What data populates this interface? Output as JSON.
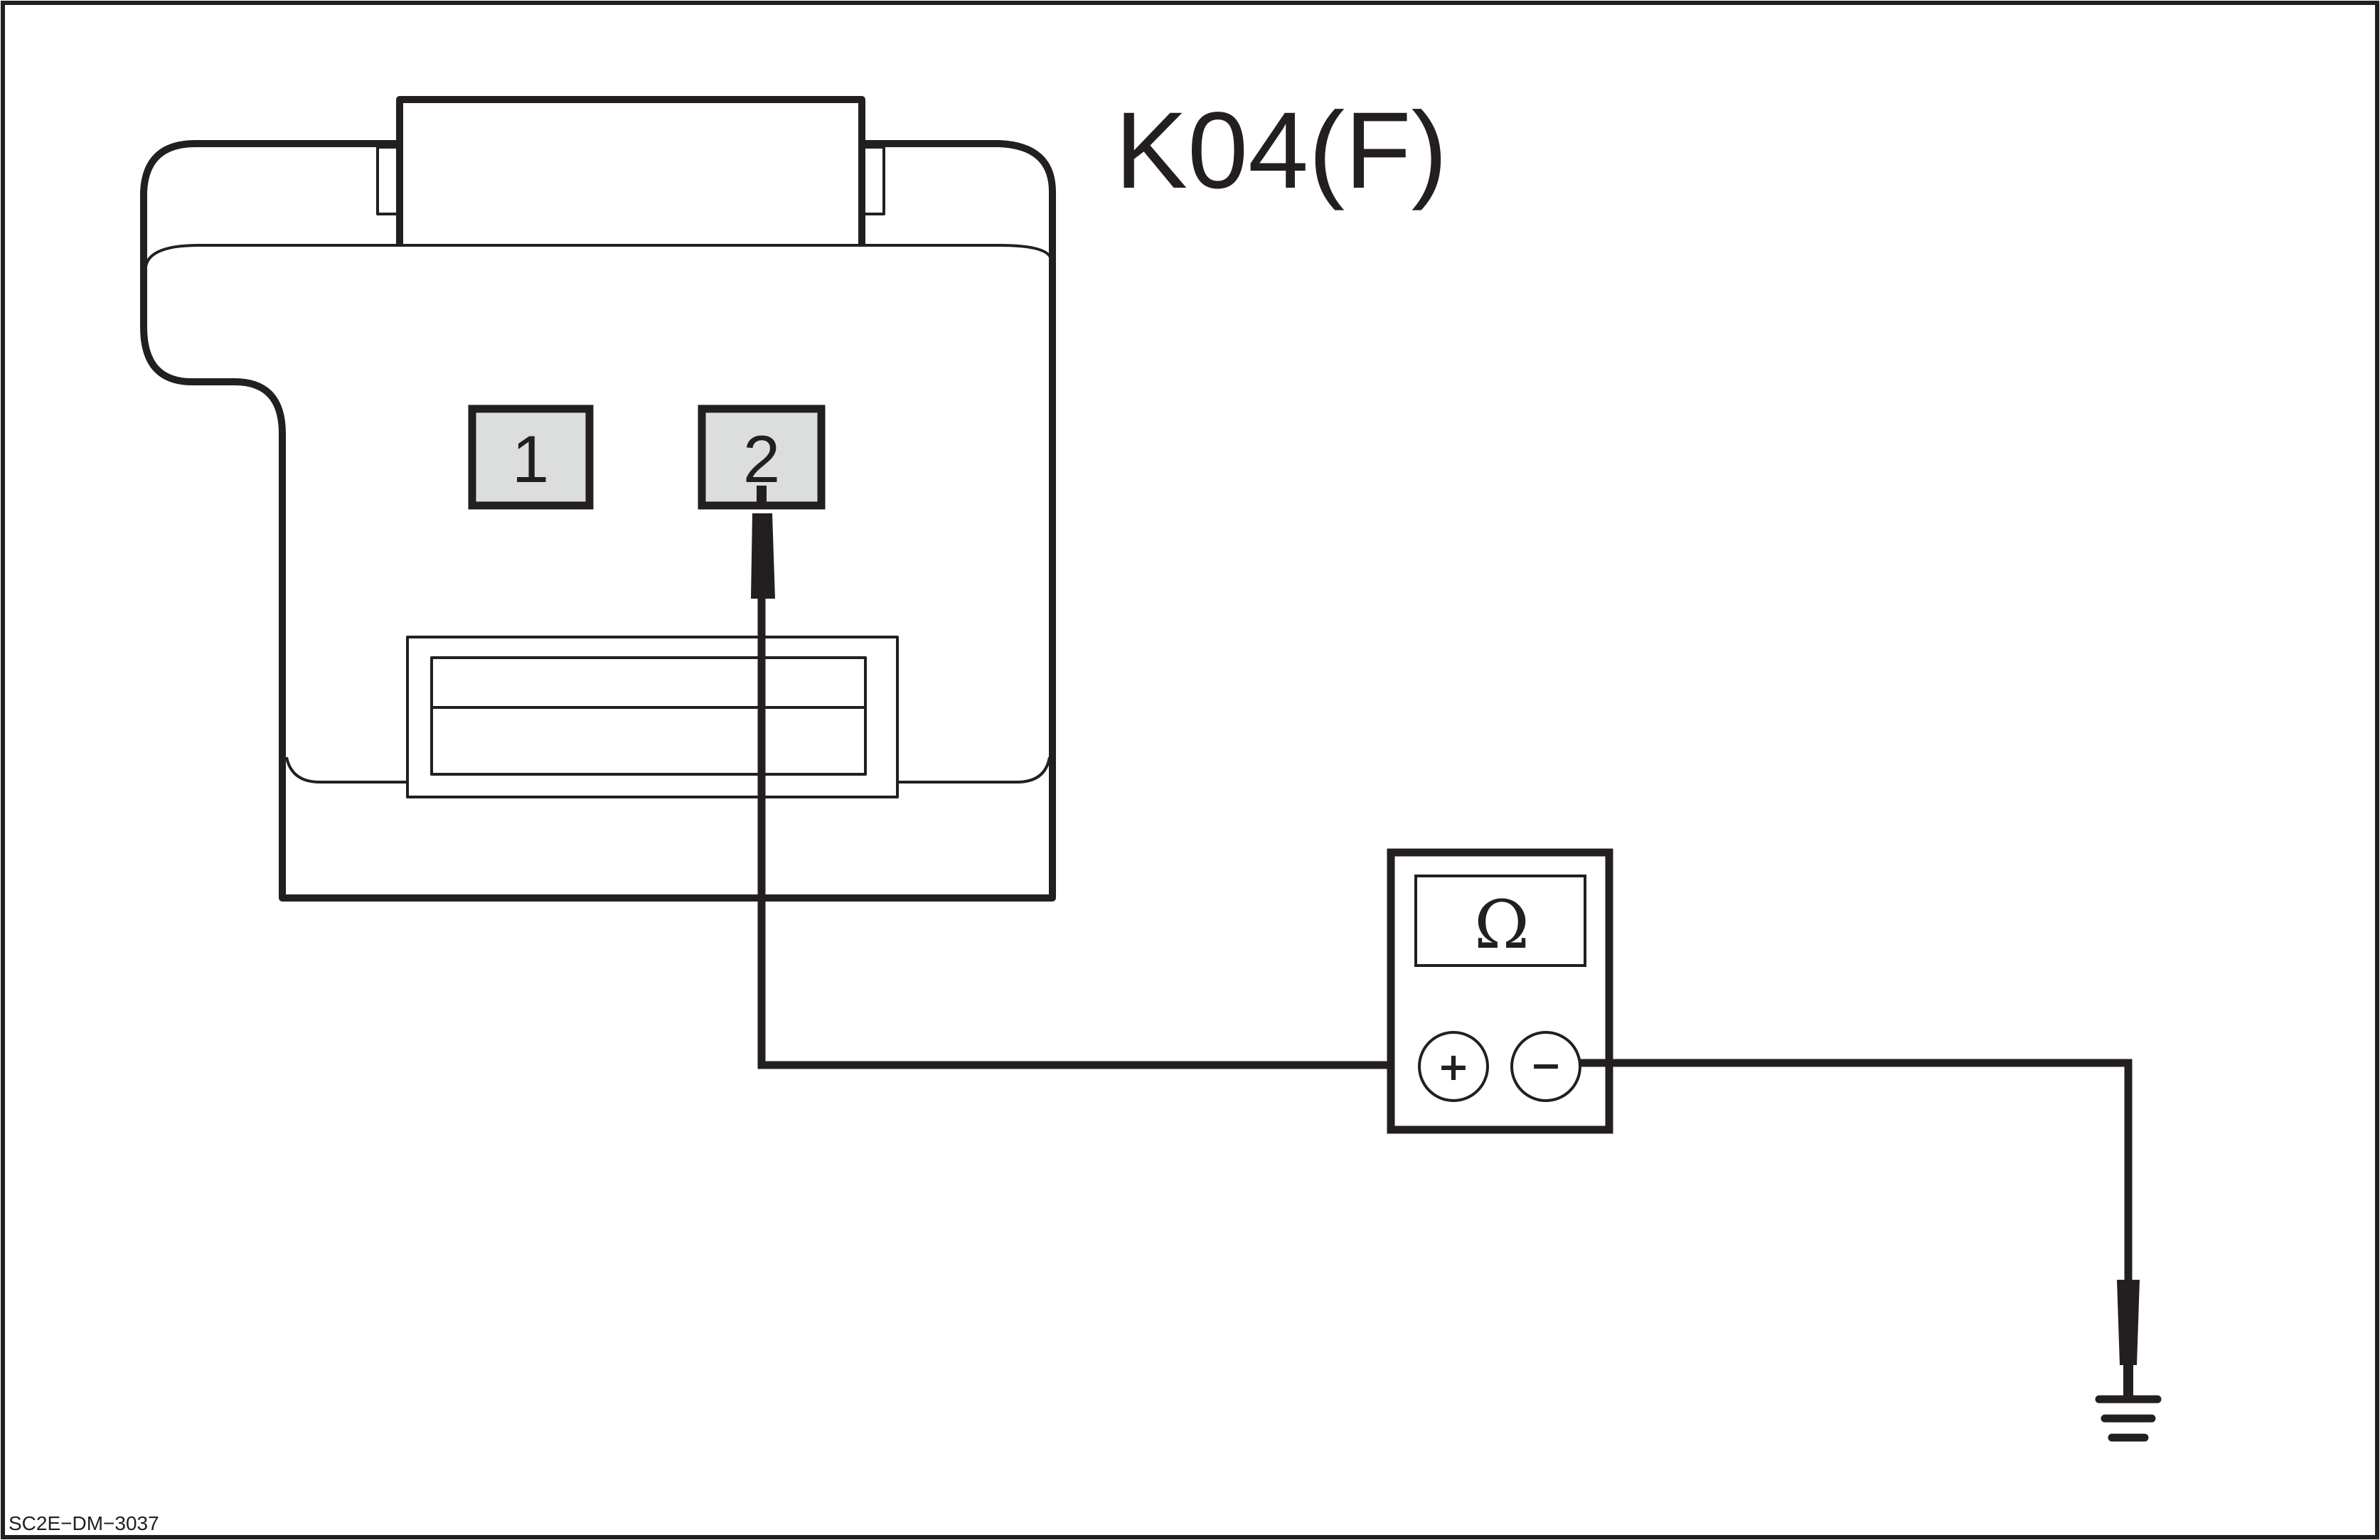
{
  "connector": {
    "label": "K04(F)",
    "pins": [
      "1",
      "2"
    ]
  },
  "meter": {
    "symbol": "Ω",
    "positive_terminal": "+",
    "negative_terminal": "−"
  },
  "diagram_code": "SC2E−DM−3037",
  "colors": {
    "line": "#231f20",
    "pin_fill": "#dcdddd",
    "background": "#ffffff"
  }
}
